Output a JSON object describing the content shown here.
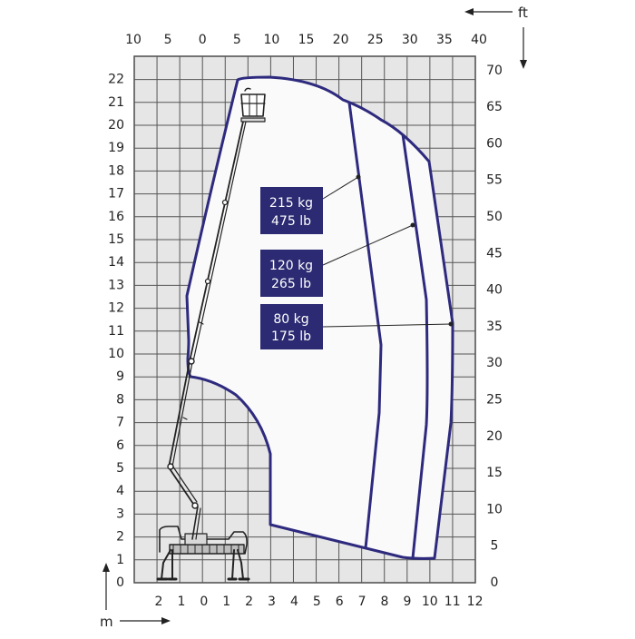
{
  "units": {
    "meters": "m",
    "feet": "ft"
  },
  "axes": {
    "bottom_m": [
      "2",
      "1",
      "0",
      "1",
      "2",
      "3",
      "4",
      "5",
      "6",
      "7",
      "8",
      "9",
      "10",
      "11",
      "12"
    ],
    "left_m": [
      "0",
      "1",
      "2",
      "3",
      "4",
      "5",
      "6",
      "7",
      "8",
      "9",
      "10",
      "11",
      "12",
      "13",
      "14",
      "15",
      "16",
      "17",
      "18",
      "19",
      "20",
      "21",
      "22"
    ],
    "top_ft": [
      "10",
      "5",
      "0",
      "5",
      "10",
      "15",
      "20",
      "25",
      "30",
      "35",
      "40"
    ],
    "right_ft": [
      "0",
      "5",
      "10",
      "15",
      "20",
      "25",
      "30",
      "35",
      "40",
      "45",
      "50",
      "55",
      "60",
      "65",
      "70"
    ]
  },
  "load_zones": [
    {
      "kg": "215 kg",
      "lb": "475 lb"
    },
    {
      "kg": "120 kg",
      "lb": "265 lb"
    },
    {
      "kg": "80 kg",
      "lb": "175 lb"
    }
  ],
  "colors": {
    "envelope": "#2e2a7e",
    "label_bg": "#2b2a72",
    "plot_bg": "#e6e6e6",
    "grid": "#555555"
  }
}
